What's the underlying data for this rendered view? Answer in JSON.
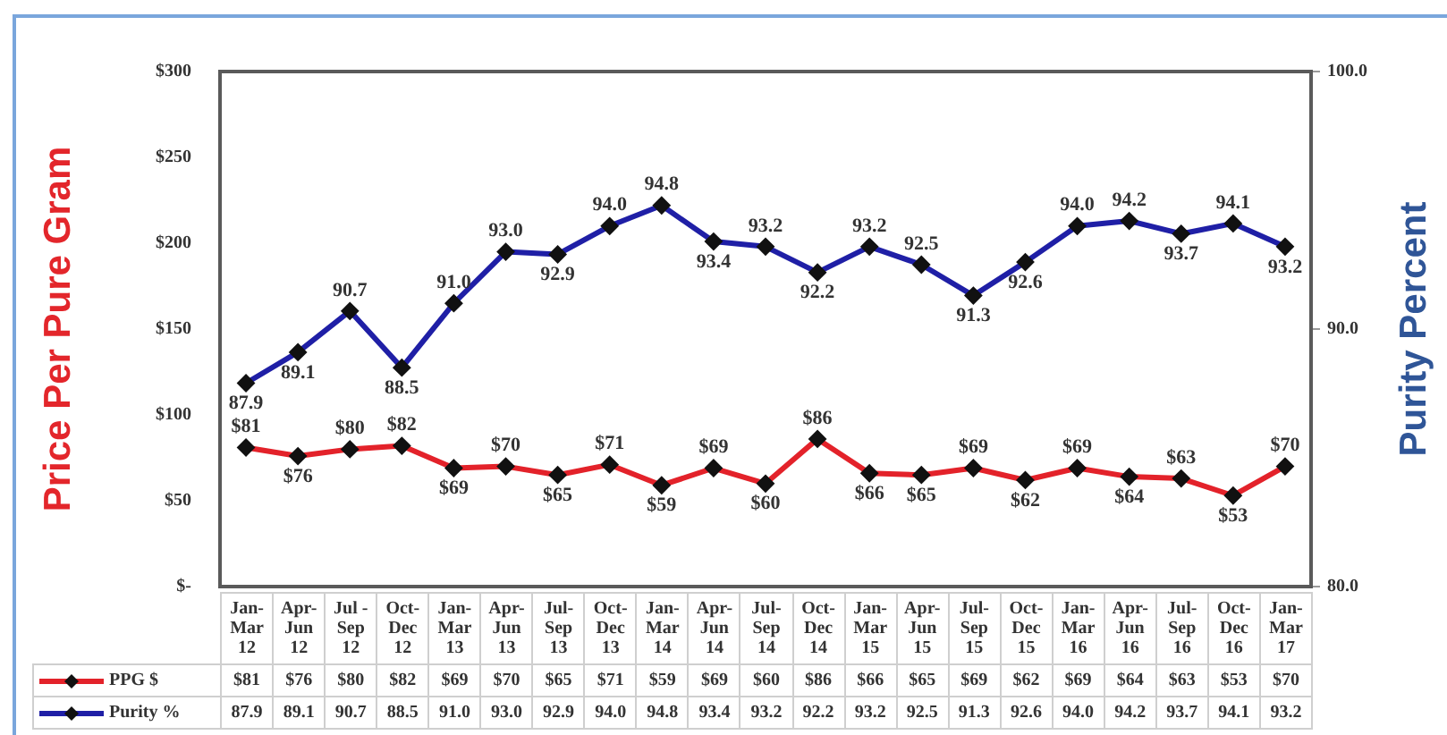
{
  "chart_data": {
    "type": "line",
    "ylabel": "Price Per Pure Gram",
    "y2label": "Purity Percent",
    "categories": [
      "Jan-Mar 12",
      "Apr-Jun 12",
      "Jul - Sep 12",
      "Oct-Dec 12",
      "Jan-Mar 13",
      "Apr-Jun 13",
      "Jul-Sep 13",
      "Oct-Dec 13",
      "Jan-Mar 14",
      "Apr-Jun 14",
      "Jul-Sep 14",
      "Oct-Dec 14",
      "Jan-Mar 15",
      "Apr-Jun 15",
      "Jul-Sep 15",
      "Oct-Dec 15",
      "Jan-Mar 16",
      "Apr-Jun 16",
      "Jul-Sep 16",
      "Oct-Dec 16",
      "Jan-Mar 17"
    ],
    "series": [
      {
        "name": "PPG $",
        "color": "#e3222a",
        "values": [
          81,
          76,
          80,
          82,
          69,
          70,
          65,
          71,
          59,
          69,
          60,
          86,
          66,
          65,
          69,
          62,
          69,
          64,
          63,
          53,
          70
        ],
        "value_labels": [
          "$81",
          "$76",
          "$80",
          "$82",
          "$69",
          "$70",
          "$65",
          "$71",
          "$59",
          "$69",
          "$60",
          "$86",
          "$66",
          "$65",
          "$69",
          "$62",
          "$69",
          "$64",
          "$63",
          "$53",
          "$70"
        ]
      },
      {
        "name": "Purity %",
        "color": "#1f1fa6",
        "axis": "y2",
        "values": [
          87.9,
          89.1,
          90.7,
          88.5,
          91.0,
          93.0,
          92.9,
          94.0,
          94.8,
          93.4,
          93.2,
          92.2,
          93.2,
          92.5,
          91.3,
          92.6,
          94.0,
          94.2,
          93.7,
          94.1,
          93.2
        ],
        "value_labels": [
          "87.9",
          "89.1",
          "90.7",
          "88.5",
          "91.0",
          "93.0",
          "92.9",
          "94.0",
          "94.8",
          "93.4",
          "93.2",
          "92.2",
          "93.2",
          "92.5",
          "91.3",
          "92.6",
          "94.0",
          "94.2",
          "93.7",
          "94.1",
          "93.2"
        ]
      }
    ],
    "ylim": [
      0,
      300
    ],
    "yticks": [
      {
        "value": 0,
        "label": "$-"
      },
      {
        "value": 50,
        "label": "$50"
      },
      {
        "value": 100,
        "label": "$100"
      },
      {
        "value": 150,
        "label": "$150"
      },
      {
        "value": 200,
        "label": "$200"
      },
      {
        "value": 250,
        "label": "$250"
      },
      {
        "value": 300,
        "label": "$300"
      }
    ],
    "y2lim": [
      80,
      100
    ],
    "y2ticks": [
      {
        "value": 80,
        "label": "80.0"
      },
      {
        "value": 90,
        "label": "90.0"
      },
      {
        "value": 100,
        "label": "100.0"
      }
    ],
    "legend": "bottom",
    "marker": "diamond",
    "line_style": "solid"
  }
}
